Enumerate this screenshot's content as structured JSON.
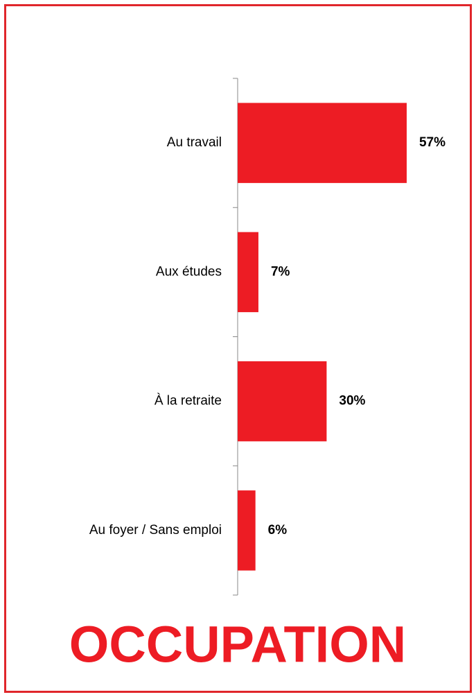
{
  "chart_data": {
    "type": "barh",
    "title": "OCCUPATION",
    "categories": [
      "Au travail",
      "Aux études",
      "À la retraite",
      "Au foyer / Sans emploi"
    ],
    "values": [
      57,
      7,
      30,
      6
    ],
    "value_labels": [
      "57%",
      "7%",
      "30%",
      "6%"
    ],
    "color": "#ed1c24"
  }
}
